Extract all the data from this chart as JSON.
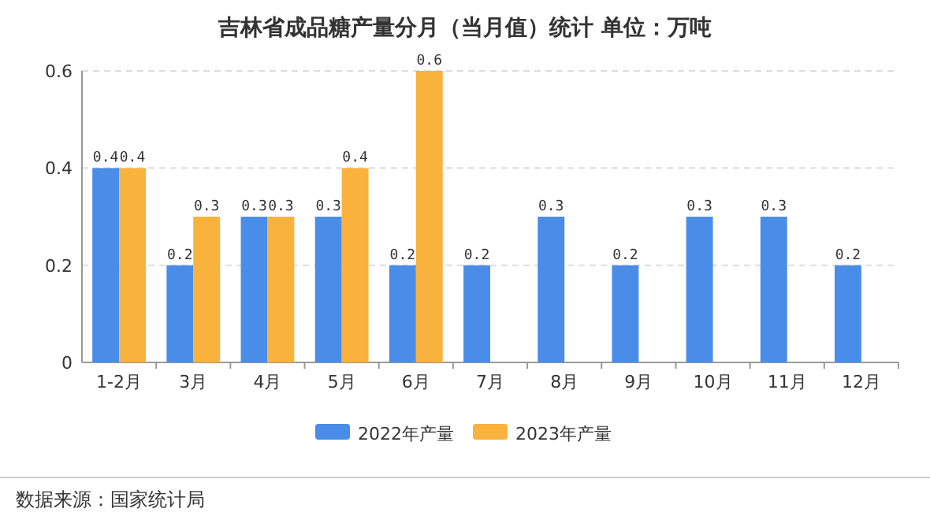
{
  "chart_data": {
    "type": "bar",
    "title": "吉林省成品糖产量分月（当月值）统计 单位：万吨",
    "categories": [
      "1-2月",
      "3月",
      "4月",
      "5月",
      "6月",
      "7月",
      "8月",
      "9月",
      "10月",
      "11月",
      "12月"
    ],
    "series": [
      {
        "name": "2022年产量",
        "color": "#4a8de8",
        "values": [
          0.4,
          0.2,
          0.3,
          0.3,
          0.2,
          0.2,
          0.3,
          0.2,
          0.3,
          0.3,
          0.2
        ]
      },
      {
        "name": "2023年产量",
        "color": "#f9b23c",
        "values": [
          0.4,
          0.3,
          0.3,
          0.4,
          0.6,
          null,
          null,
          null,
          null,
          null,
          null
        ]
      }
    ],
    "ylim": [
      0,
      0.6
    ],
    "yticks": [
      0,
      0.2,
      0.4,
      0.6
    ],
    "grid": "y",
    "legend": "bottom",
    "data_labels": true,
    "annotations": [
      "数据来源：国家统计局"
    ]
  }
}
